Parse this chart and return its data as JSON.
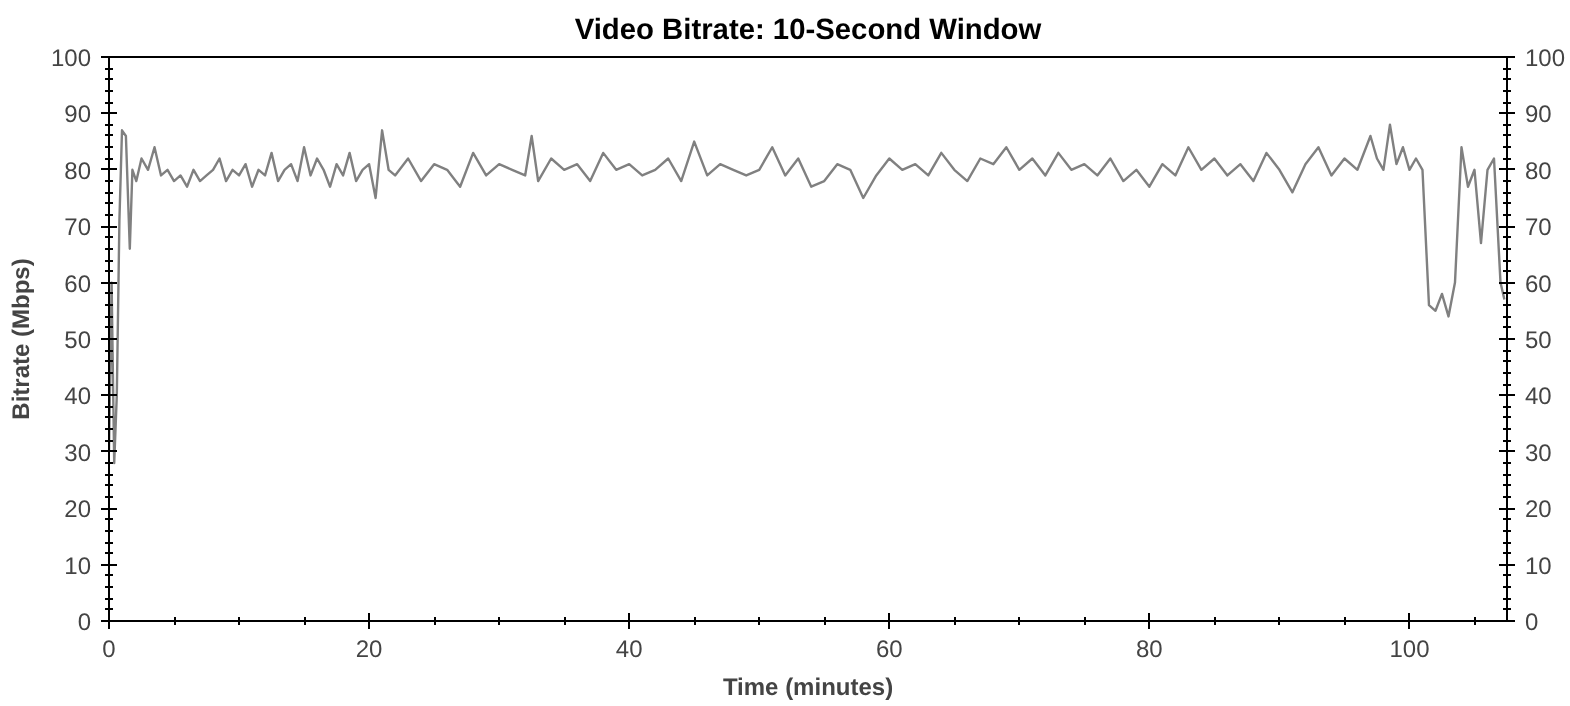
{
  "chart_data": {
    "type": "line",
    "title": "Video Bitrate: 10-Second Window",
    "xlabel": "Time (minutes)",
    "ylabel": "Bitrate (Mbps)",
    "xlim": [
      0,
      107.5
    ],
    "xticks": [
      0,
      20,
      40,
      60,
      80,
      100
    ],
    "ylim": [
      0,
      100
    ],
    "yticks": [
      0,
      10,
      20,
      30,
      40,
      50,
      60,
      70,
      80,
      90,
      100
    ],
    "y2lim": [
      0,
      100
    ],
    "y2ticks": [
      0,
      10,
      20,
      30,
      40,
      50,
      60,
      70,
      80,
      90,
      100
    ],
    "grid": false,
    "marker": "none",
    "line_style": "solid",
    "series": [
      {
        "color": "#808080",
        "x": [
          0,
          0.2,
          0.4,
          0.6,
          0.8,
          1.0,
          1.3,
          1.6,
          1.8,
          2.1,
          2.5,
          3.0,
          3.5,
          4.0,
          4.5,
          5.0,
          5.5,
          6.0,
          6.5,
          7.0,
          7.5,
          8.0,
          8.5,
          9.0,
          9.5,
          10.0,
          10.5,
          11.0,
          11.5,
          12.0,
          12.5,
          13.0,
          13.5,
          14.0,
          14.5,
          15.0,
          15.5,
          16.0,
          16.5,
          17.0,
          17.5,
          18.0,
          18.5,
          19.0,
          19.5,
          20.0,
          20.5,
          21.0,
          21.5,
          22.0,
          23.0,
          24.0,
          25.0,
          26.0,
          27.0,
          28.0,
          29.0,
          30.0,
          31.0,
          32.0,
          32.5,
          33.0,
          34.0,
          35.0,
          36.0,
          37.0,
          38.0,
          39.0,
          40.0,
          41.0,
          42.0,
          43.0,
          44.0,
          45.0,
          46.0,
          47.0,
          48.0,
          49.0,
          50.0,
          51.0,
          52.0,
          53.0,
          54.0,
          55.0,
          56.0,
          57.0,
          58.0,
          59.0,
          60.0,
          61.0,
          62.0,
          63.0,
          64.0,
          65.0,
          66.0,
          67.0,
          68.0,
          69.0,
          70.0,
          71.0,
          72.0,
          73.0,
          74.0,
          75.0,
          76.0,
          77.0,
          78.0,
          79.0,
          80.0,
          81.0,
          82.0,
          83.0,
          84.0,
          85.0,
          86.0,
          87.0,
          88.0,
          89.0,
          90.0,
          91.0,
          92.0,
          93.0,
          94.0,
          95.0,
          96.0,
          97.0,
          97.5,
          98.0,
          98.5,
          99.0,
          99.5,
          100.0,
          100.5,
          101.0,
          101.5,
          102.0,
          102.5,
          103.0,
          103.5,
          104.0,
          104.5,
          105.0,
          105.5,
          106.0,
          106.5,
          107.0,
          107.3
        ],
        "values": [
          30,
          60,
          28,
          40,
          71,
          87,
          86,
          66,
          80,
          78,
          82,
          80,
          84,
          79,
          80,
          78,
          79,
          77,
          80,
          78,
          79,
          80,
          82,
          78,
          80,
          79,
          81,
          77,
          80,
          79,
          83,
          78,
          80,
          81,
          78,
          84,
          79,
          82,
          80,
          77,
          81,
          79,
          83,
          78,
          80,
          81,
          75,
          87,
          80,
          79,
          82,
          78,
          81,
          80,
          77,
          83,
          79,
          81,
          80,
          79,
          86,
          78,
          82,
          80,
          81,
          78,
          83,
          80,
          81,
          79,
          80,
          82,
          78,
          85,
          79,
          81,
          80,
          79,
          80,
          84,
          79,
          82,
          77,
          78,
          81,
          80,
          75,
          79,
          82,
          80,
          81,
          79,
          83,
          80,
          78,
          82,
          81,
          84,
          80,
          82,
          79,
          83,
          80,
          81,
          79,
          82,
          78,
          80,
          77,
          81,
          79,
          84,
          80,
          82,
          79,
          81,
          78,
          83,
          80,
          76,
          81,
          84,
          79,
          82,
          80,
          86,
          82,
          80,
          88,
          81,
          84,
          80,
          82,
          80,
          56,
          55,
          58,
          54,
          60,
          84,
          77,
          80,
          67,
          80,
          82,
          60,
          57
        ]
      }
    ]
  }
}
